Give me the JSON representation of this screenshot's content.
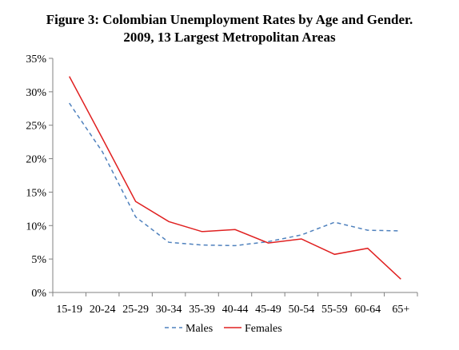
{
  "chart_data": {
    "type": "line",
    "title_line1": "Figure 3: Colombian Unemployment Rates by Age and Gender.",
    "title_line2": "2009, 13 Largest Metropolitan Areas",
    "categories": [
      "15-19",
      "20-24",
      "25-29",
      "30-34",
      "35-39",
      "40-44",
      "45-49",
      "50-54",
      "55-59",
      "60-64",
      "65+"
    ],
    "ylim": [
      0,
      35
    ],
    "yticks": [
      0,
      5,
      10,
      15,
      20,
      25,
      30,
      35
    ],
    "ytick_labels": [
      "0%",
      "5%",
      "10%",
      "15%",
      "20%",
      "25%",
      "30%",
      "35%"
    ],
    "grid": false,
    "legend_position": "bottom",
    "series": [
      {
        "name": "Males",
        "color": "#4f81bd",
        "dash": true,
        "values": [
          28.3,
          21.0,
          11.3,
          7.5,
          7.1,
          7.0,
          7.6,
          8.6,
          10.5,
          9.3,
          9.2
        ]
      },
      {
        "name": "Females",
        "color": "#e02020",
        "dash": false,
        "values": [
          32.3,
          23.0,
          13.6,
          10.6,
          9.1,
          9.4,
          7.4,
          8.0,
          5.7,
          6.6,
          2.0
        ]
      }
    ]
  }
}
